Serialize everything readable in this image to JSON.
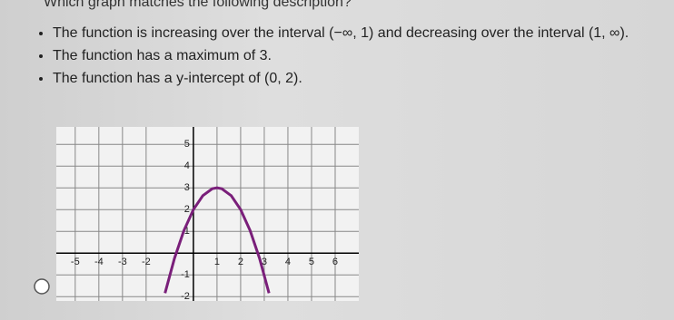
{
  "question": "Which graph matches the following description?",
  "bullets": [
    "The function is increasing over the interval (−∞, 1) and decreasing over the interval (1, ∞).",
    "The function has a maximum of 3.",
    "The function has a y-intercept of (0, 2)."
  ],
  "chart_data": {
    "type": "line",
    "x": [
      -1.2,
      -0.8,
      -0.4,
      0,
      0.4,
      0.8,
      1,
      1.2,
      1.6,
      2,
      2.4,
      2.8,
      3.2
    ],
    "series": [
      {
        "color": "#7a1f7a",
        "values": [
          -1.84,
          -0.24,
          1.04,
          2,
          2.64,
          2.96,
          3,
          2.96,
          2.64,
          2,
          1.04,
          -0.24,
          -1.84
        ]
      }
    ],
    "xlim": [
      -5.8,
      7
    ],
    "ylim": [
      -2.2,
      5.8
    ],
    "xticks": [
      -5,
      -4,
      -3,
      -2,
      1,
      2,
      3,
      4,
      5,
      6
    ],
    "yticks": [
      -2,
      -1,
      1,
      2,
      3,
      4,
      5
    ],
    "grid": true
  }
}
